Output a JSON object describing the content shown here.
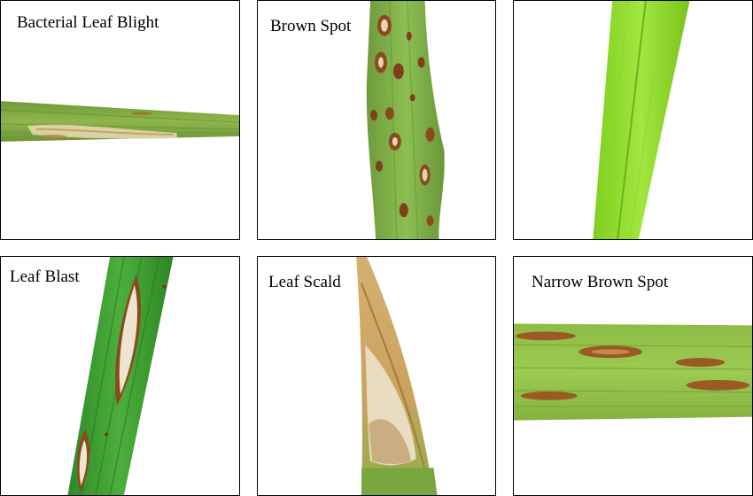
{
  "panels": [
    {
      "label": "Bacterial Leaf Blight",
      "depicts": "rice-leaf"
    },
    {
      "label": "Brown Spot",
      "depicts": "rice-leaf"
    },
    {
      "label": "",
      "depicts": "rice-leaf"
    },
    {
      "label": "Leaf Blast",
      "depicts": "rice-leaf"
    },
    {
      "label": "Leaf Scald",
      "depicts": "rice-leaf"
    },
    {
      "label": "Narrow Brown Spot",
      "depicts": "rice-leaf"
    }
  ],
  "colors": {
    "border": "#000000",
    "leaf_green": "#7fae3f",
    "healthy_green": "#8ed81f",
    "lesion_brown": "#8b4a1e",
    "lesion_tan": "#e8d9b5"
  }
}
